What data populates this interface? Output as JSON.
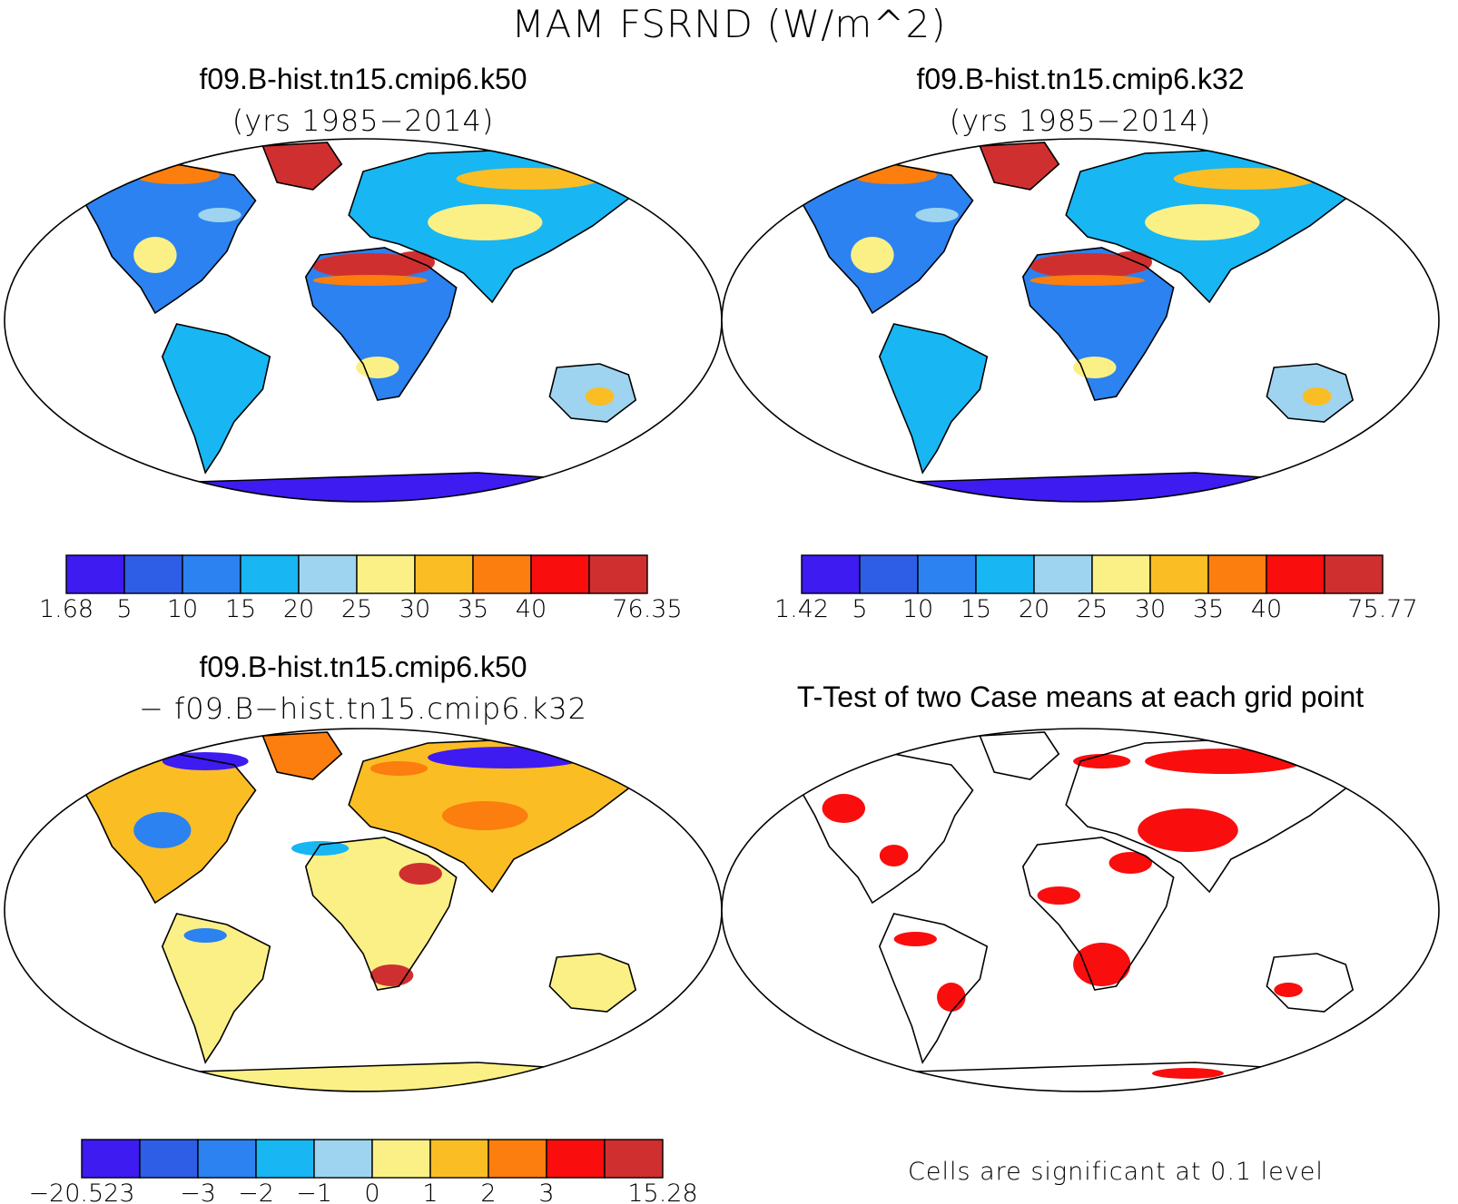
{
  "title": "MAM FSRND (W/m^2)",
  "panels": [
    {
      "id": "k50",
      "title": "f09.B-hist.tn15.cmip6.k50",
      "subtitle": "(yrs 1985−2014)",
      "colorbar": {
        "colors": [
          "#3e1bf0",
          "#2e5de6",
          "#2b82f0",
          "#18b6f2",
          "#9ed4ef",
          "#fbf086",
          "#fbbd24",
          "#fb7e0e",
          "#f90d0d",
          "#d02f2f"
        ],
        "labels": [
          "1.68",
          "5",
          "10",
          "15",
          "20",
          "25",
          "30",
          "35",
          "40",
          "76.35"
        ]
      }
    },
    {
      "id": "k32",
      "title": "f09.B-hist.tn15.cmip6.k32",
      "subtitle": "(yrs 1985−2014)",
      "colorbar": {
        "colors": [
          "#3e1bf0",
          "#2e5de6",
          "#2b82f0",
          "#18b6f2",
          "#9ed4ef",
          "#fbf086",
          "#fbbd24",
          "#fb7e0e",
          "#f90d0d",
          "#d02f2f"
        ],
        "labels": [
          "1.42",
          "5",
          "10",
          "15",
          "20",
          "25",
          "30",
          "35",
          "40",
          "75.77"
        ]
      }
    },
    {
      "id": "diff",
      "title": "f09.B-hist.tn15.cmip6.k50",
      "subtitle": "− f09.B−hist.tn15.cmip6.k32",
      "colorbar": {
        "colors": [
          "#3e1bf0",
          "#2e5de6",
          "#2b82f0",
          "#18b6f2",
          "#9ed4ef",
          "#fbf086",
          "#fbbd24",
          "#fb7e0e",
          "#f90d0d",
          "#d02f2f"
        ],
        "labels": [
          "−20.523",
          "−3",
          "−2",
          "−1",
          "0",
          "1",
          "2",
          "3",
          "15.28"
        ]
      }
    },
    {
      "id": "ttest",
      "title": "T-Test of two Case means at each grid point",
      "note": "Cells are significant at 0.1 level"
    }
  ]
}
